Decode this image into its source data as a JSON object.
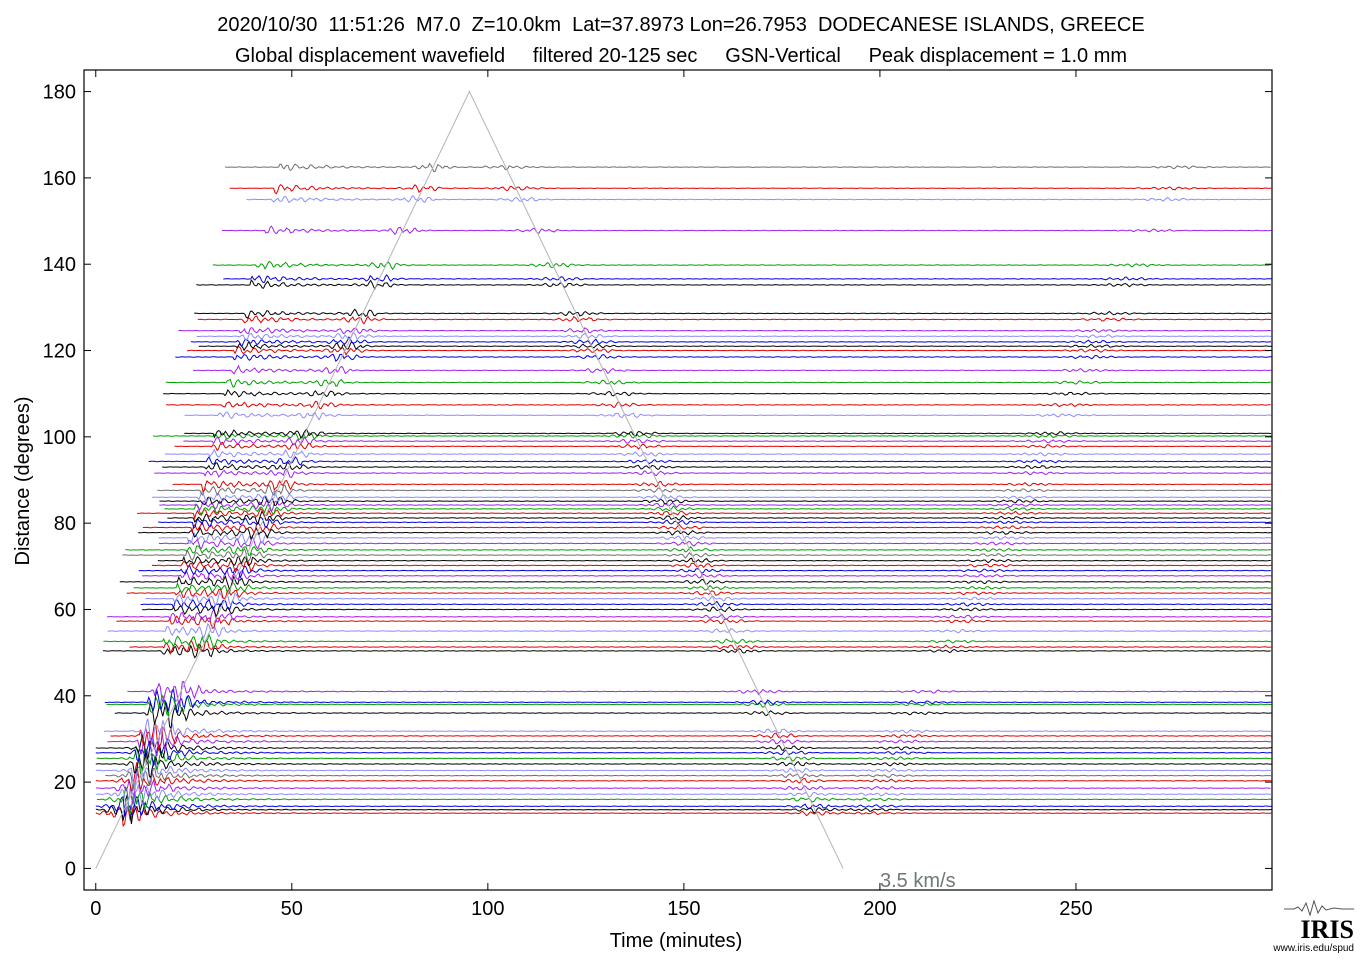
{
  "header": {
    "title_line1": "2020/10/30  11:51:26  M7.0  Z=10.0km  Lat=37.8973 Lon=26.7953  DODECANESE ISLANDS, GREECE",
    "title_line2": "Global displacement wavefield     filtered 20-125 sec     GSN-Vertical     Peak displacement = 1.0 mm"
  },
  "chart_data": {
    "type": "line",
    "title": "2020/10/30  11:51:26  M7.0  Z=10.0km  Lat=37.8973 Lon=26.7953  DODECANESE ISLANDS, GREECE",
    "subtitle": "Global displacement wavefield     filtered 20-125 sec     GSN-Vertical     Peak displacement = 1.0 mm",
    "xlabel": "Time (minutes)",
    "ylabel": "Distance (degrees)",
    "xlim": [
      -3,
      300
    ],
    "ylim": [
      -5,
      185
    ],
    "xticks": [
      0,
      50,
      100,
      150,
      200,
      250
    ],
    "yticks": [
      0,
      20,
      40,
      60,
      80,
      100,
      120,
      140,
      160,
      180
    ],
    "grid": false,
    "reference_line": {
      "label": "3.5 km/s",
      "points": [
        [
          0,
          0
        ],
        [
          95.3,
          180
        ],
        [
          190.6,
          0
        ]
      ],
      "color": "#b4b4b4"
    },
    "trace_colors": [
      "#000000",
      "#e00000",
      "#0000e0",
      "#00a000",
      "#a020f0",
      "#8c8cff",
      "#6e6e6e"
    ],
    "series_note": "",
    "traces": [
      {
        "distance": 12.8,
        "color": "#e00000"
      },
      {
        "distance": 13.6,
        "color": "#000000"
      },
      {
        "distance": 14.4,
        "color": "#0000e0"
      },
      {
        "distance": 16.0,
        "color": "#00a000"
      },
      {
        "distance": 17.2,
        "color": "#8c8cff"
      },
      {
        "distance": 18.6,
        "color": "#a020f0"
      },
      {
        "distance": 20.3,
        "color": "#e00000"
      },
      {
        "distance": 21.5,
        "color": "#6e6e6e"
      },
      {
        "distance": 22.7,
        "color": "#8c8cff"
      },
      {
        "distance": 24.2,
        "color": "#000000"
      },
      {
        "distance": 25.5,
        "color": "#00a000"
      },
      {
        "distance": 26.8,
        "color": "#0000e0"
      },
      {
        "distance": 27.9,
        "color": "#000000"
      },
      {
        "distance": 29.4,
        "color": "#a020f0"
      },
      {
        "distance": 30.7,
        "color": "#e00000"
      },
      {
        "distance": 31.8,
        "color": "#8c8cff"
      },
      {
        "distance": 36.0,
        "color": "#000000"
      },
      {
        "distance": 38.0,
        "color": "#00a000"
      },
      {
        "distance": 38.5,
        "color": "#0000e0"
      },
      {
        "distance": 41.0,
        "color": "#a020f0"
      },
      {
        "distance": 50.4,
        "color": "#000000"
      },
      {
        "distance": 51.3,
        "color": "#e00000"
      },
      {
        "distance": 52.6,
        "color": "#00a000"
      },
      {
        "distance": 55.0,
        "color": "#8c8cff"
      },
      {
        "distance": 57.3,
        "color": "#e00000"
      },
      {
        "distance": 58.3,
        "color": "#a020f0"
      },
      {
        "distance": 60.0,
        "color": "#000000"
      },
      {
        "distance": 61.2,
        "color": "#0000e0"
      },
      {
        "distance": 62.5,
        "color": "#8c8cff"
      },
      {
        "distance": 63.8,
        "color": "#e00000"
      },
      {
        "distance": 65.0,
        "color": "#00a000"
      },
      {
        "distance": 66.4,
        "color": "#000000"
      },
      {
        "distance": 67.8,
        "color": "#a020f0"
      },
      {
        "distance": 69.0,
        "color": "#0000e0"
      },
      {
        "distance": 70.2,
        "color": "#e00000"
      },
      {
        "distance": 71.3,
        "color": "#000000"
      },
      {
        "distance": 72.6,
        "color": "#6e6e6e"
      },
      {
        "distance": 73.8,
        "color": "#00a000"
      },
      {
        "distance": 75.3,
        "color": "#a020f0"
      },
      {
        "distance": 76.6,
        "color": "#8c8cff"
      },
      {
        "distance": 77.8,
        "color": "#000000"
      },
      {
        "distance": 79.0,
        "color": "#e00000"
      },
      {
        "distance": 80.2,
        "color": "#0000e0"
      },
      {
        "distance": 81.2,
        "color": "#000000"
      },
      {
        "distance": 82.3,
        "color": "#e00000"
      },
      {
        "distance": 83.3,
        "color": "#00a000"
      },
      {
        "distance": 84.2,
        "color": "#a020f0"
      },
      {
        "distance": 85.1,
        "color": "#000000"
      },
      {
        "distance": 86.0,
        "color": "#8c8cff"
      },
      {
        "distance": 87.6,
        "color": "#6e6e6e"
      },
      {
        "distance": 89.0,
        "color": "#e00000"
      },
      {
        "distance": 91.6,
        "color": "#a020f0"
      },
      {
        "distance": 93.0,
        "color": "#000000"
      },
      {
        "distance": 94.3,
        "color": "#0000e0"
      },
      {
        "distance": 96.0,
        "color": "#8c8cff"
      },
      {
        "distance": 97.8,
        "color": "#e00000"
      },
      {
        "distance": 99.0,
        "color": "#a020f0"
      },
      {
        "distance": 100.2,
        "color": "#00a000"
      },
      {
        "distance": 100.8,
        "color": "#000000"
      },
      {
        "distance": 105.0,
        "color": "#8c8cff"
      },
      {
        "distance": 107.4,
        "color": "#e00000"
      },
      {
        "distance": 110.0,
        "color": "#000000"
      },
      {
        "distance": 112.6,
        "color": "#00a000"
      },
      {
        "distance": 115.4,
        "color": "#a020f0"
      },
      {
        "distance": 118.5,
        "color": "#0000e0"
      },
      {
        "distance": 120.0,
        "color": "#e00000"
      },
      {
        "distance": 121.0,
        "color": "#000000"
      },
      {
        "distance": 122.0,
        "color": "#0000e0"
      },
      {
        "distance": 123.3,
        "color": "#8c8cff"
      },
      {
        "distance": 124.6,
        "color": "#a020f0"
      },
      {
        "distance": 127.2,
        "color": "#e00000"
      },
      {
        "distance": 128.6,
        "color": "#000000"
      },
      {
        "distance": 135.2,
        "color": "#000000"
      },
      {
        "distance": 136.6,
        "color": "#0000e0"
      },
      {
        "distance": 139.8,
        "color": "#00a000"
      },
      {
        "distance": 147.8,
        "color": "#a020f0"
      },
      {
        "distance": 155.0,
        "color": "#8c8cff"
      },
      {
        "distance": 157.6,
        "color": "#e00000"
      },
      {
        "distance": 162.5,
        "color": "#6e6e6e"
      }
    ]
  },
  "watermark": {
    "logo_text": "IRIS",
    "url": "www.iris.edu/spud"
  }
}
